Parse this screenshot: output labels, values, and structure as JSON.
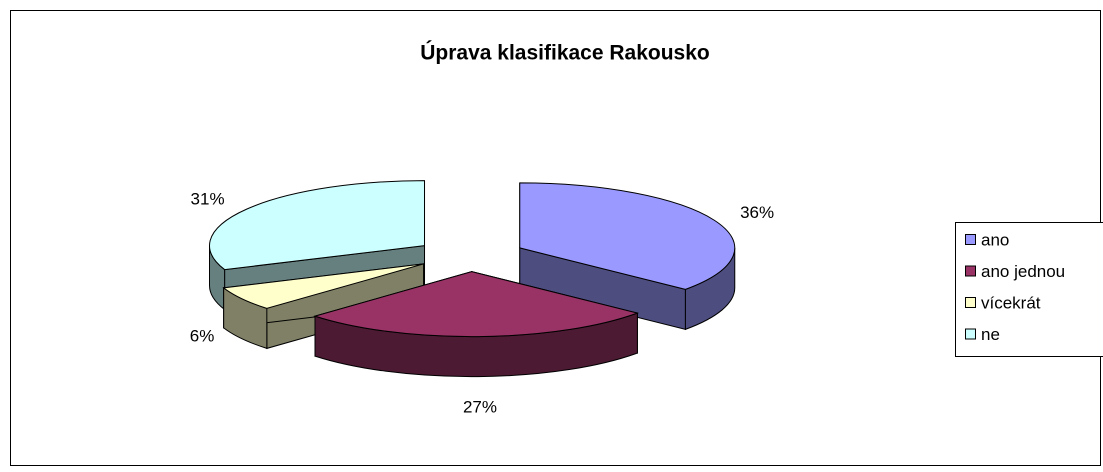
{
  "chart_data": {
    "type": "pie3d",
    "title": "Úprava klasifikace Rakousko",
    "categories": [
      "ano",
      "ano jednou",
      "vícekrát",
      "ne"
    ],
    "values": [
      36,
      27,
      6,
      31
    ],
    "value_labels": [
      "36%",
      "27%",
      "6%",
      "31%"
    ],
    "colors": [
      "#9999ff",
      "#993366",
      "#ffffcc",
      "#ccffff"
    ],
    "legend": "right"
  }
}
